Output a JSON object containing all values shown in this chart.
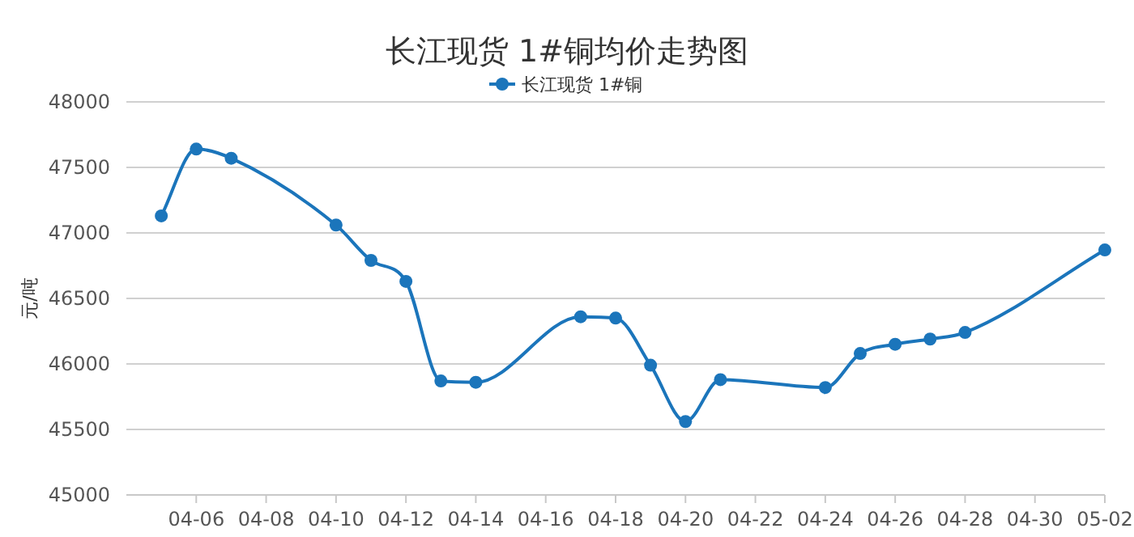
{
  "chart_data": {
    "type": "line",
    "title": "长江现货 1#铜均价走势图",
    "ylabel": "元/吨",
    "legend": "top",
    "grid": "y",
    "marker": "circle",
    "line_style": "solid",
    "x": [
      "--04-05",
      "--04-06",
      "--04-07",
      "--04-10",
      "--04-11",
      "--04-12",
      "--04-13",
      "--04-14",
      "--04-17",
      "--04-18",
      "--04-19",
      "--04-20",
      "--04-21",
      "--04-24",
      "--04-25",
      "--04-26",
      "--04-27",
      "--04-28",
      "--05-02"
    ],
    "series": [
      {
        "name": "长江现货 1#铜",
        "color": "#1b75bb",
        "values": [
          47130,
          47640,
          47570,
          47060,
          46790,
          46630,
          45870,
          45860,
          46360,
          46350,
          45990,
          45560,
          45880,
          45820,
          46080,
          46150,
          46190,
          46240,
          46870
        ]
      }
    ],
    "xlim": [
      "--04-04",
      "--05-02"
    ],
    "xticks": [
      {
        "value": "--04-06",
        "label": "04-06"
      },
      {
        "value": "--04-08",
        "label": "04-08"
      },
      {
        "value": "--04-10",
        "label": "04-10"
      },
      {
        "value": "--04-12",
        "label": "04-12"
      },
      {
        "value": "--04-14",
        "label": "04-14"
      },
      {
        "value": "--04-16",
        "label": "04-16"
      },
      {
        "value": "--04-18",
        "label": "04-18"
      },
      {
        "value": "--04-20",
        "label": "04-20"
      },
      {
        "value": "--04-22",
        "label": "04-22"
      },
      {
        "value": "--04-24",
        "label": "04-24"
      },
      {
        "value": "--04-26",
        "label": "04-26"
      },
      {
        "value": "--04-28",
        "label": "04-28"
      },
      {
        "value": "--04-30",
        "label": "04-30"
      },
      {
        "value": "--05-02",
        "label": "05-02"
      }
    ],
    "ylim": [
      45000,
      48000
    ],
    "yticks": [
      45000,
      45500,
      46000,
      46500,
      47000,
      47500,
      48000
    ]
  }
}
